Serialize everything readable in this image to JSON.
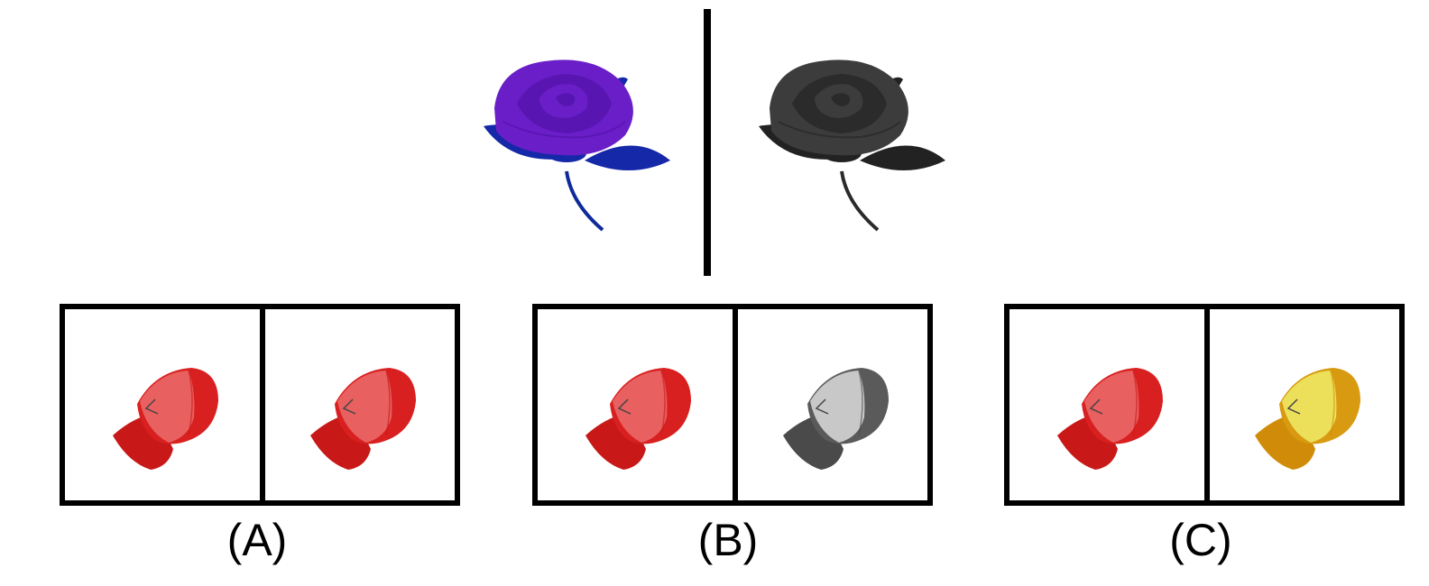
{
  "example": {
    "source_rose": {
      "petal": "#6a1ec8",
      "petal_dark": "#4a0fa0",
      "leaf": "#1428a8",
      "stem": "#102a9a"
    },
    "target_rose": {
      "petal": "#3c3c3c",
      "petal_dark": "#1e1e1e",
      "leaf": "#222222",
      "stem": "#2a2a2a"
    }
  },
  "options": [
    {
      "label": "(A)",
      "left_cap": {
        "body": "#d92020",
        "panel": "#e86060",
        "brim": "#c81818"
      },
      "right_cap": {
        "body": "#d92020",
        "panel": "#e86060",
        "brim": "#c81818"
      }
    },
    {
      "label": "(B)",
      "left_cap": {
        "body": "#d92020",
        "panel": "#e86060",
        "brim": "#c81818"
      },
      "right_cap": {
        "body": "#5a5a5a",
        "panel": "#c8c8c8",
        "brim": "#4a4a4a"
      }
    },
    {
      "label": "(C)",
      "left_cap": {
        "body": "#d92020",
        "panel": "#e86060",
        "brim": "#c81818"
      },
      "right_cap": {
        "body": "#d89a10",
        "panel": "#ece05a",
        "brim": "#d08c08"
      }
    }
  ]
}
